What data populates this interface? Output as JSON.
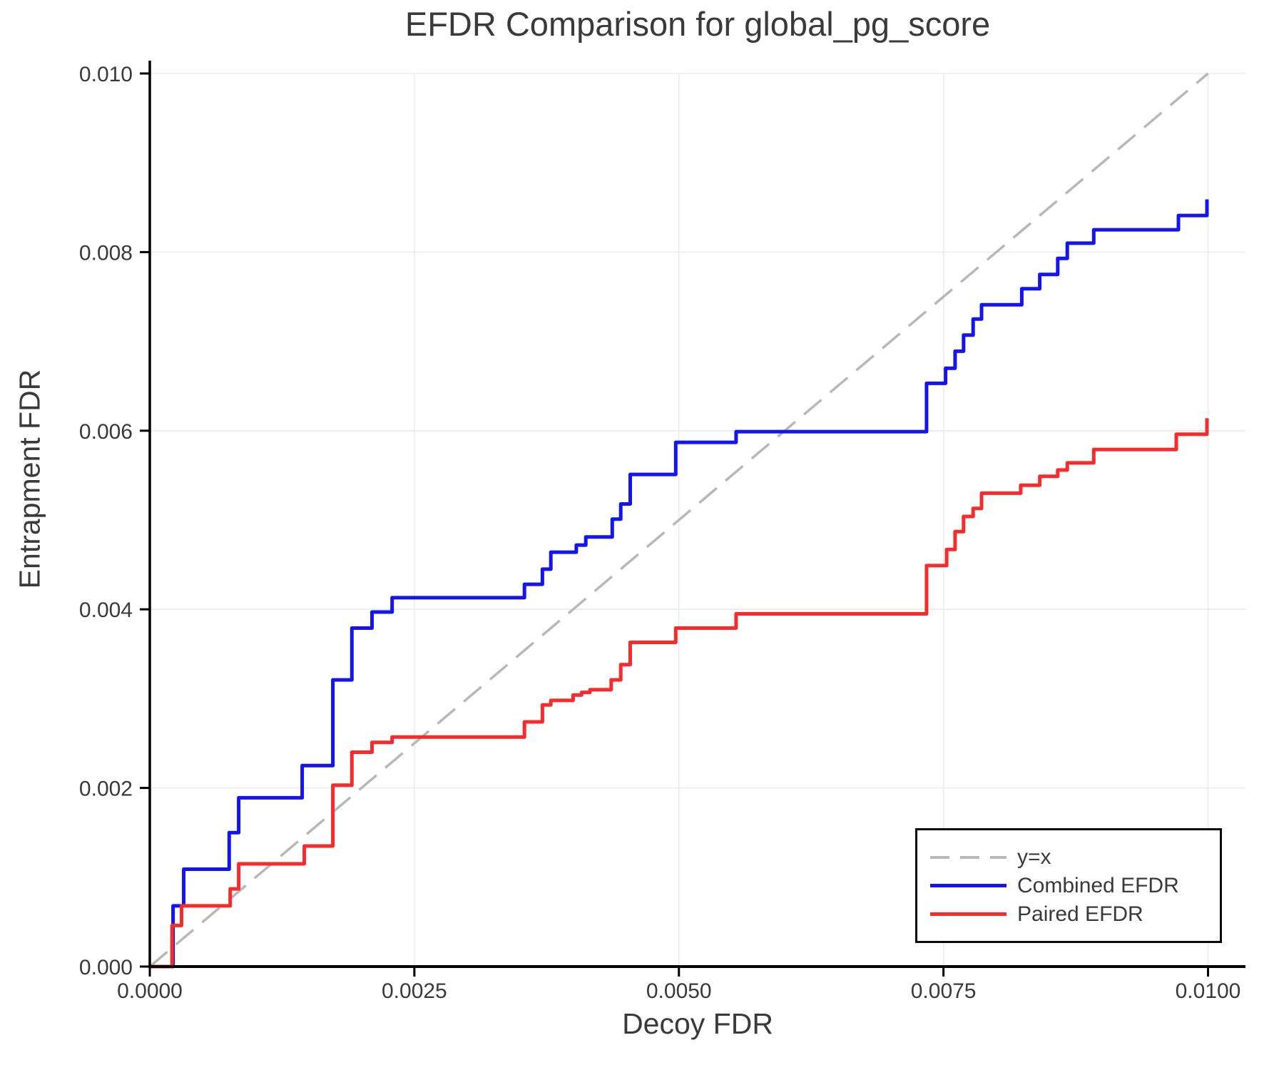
{
  "figure": {
    "title": "EFDR Comparison for global_pg_score",
    "x_axis": {
      "label": "Decoy FDR",
      "ticks": [
        {
          "value": 0.0,
          "label": "0.0000"
        },
        {
          "value": 0.0025,
          "label": "0.0025"
        },
        {
          "value": 0.005,
          "label": "0.0050"
        },
        {
          "value": 0.0075,
          "label": "0.0075"
        },
        {
          "value": 0.01,
          "label": "0.0100"
        }
      ]
    },
    "y_axis": {
      "label": "Entrapment FDR",
      "ticks": [
        {
          "value": 0.0,
          "label": "0.000"
        },
        {
          "value": 0.002,
          "label": "0.002"
        },
        {
          "value": 0.004,
          "label": "0.004"
        },
        {
          "value": 0.006,
          "label": "0.006"
        },
        {
          "value": 0.008,
          "label": "0.008"
        },
        {
          "value": 0.01,
          "label": "0.010"
        }
      ]
    },
    "legend": {
      "items": [
        {
          "label": "y=x",
          "style": "dashed",
          "color": "#b8b8b8"
        },
        {
          "label": "Combined EFDR",
          "style": "solid",
          "color": "#1414ee"
        },
        {
          "label": "Paired EFDR",
          "style": "solid",
          "color": "#f62b2b"
        }
      ]
    }
  },
  "chart_data": {
    "type": "line",
    "title": "EFDR Comparison for global_pg_score",
    "xlabel": "Decoy FDR",
    "ylabel": "Entrapment FDR",
    "xlim": [
      0,
      0.01035
    ],
    "ylim": [
      0,
      0.01
    ],
    "grid": true,
    "grid_color": "#ebebeb",
    "text_color": "#3a3a3a",
    "legend_position": "lower right",
    "series": [
      {
        "name": "y=x",
        "style": "dashed",
        "color": "#b8b8b8",
        "points": [
          [
            0,
            0
          ],
          [
            0.01,
            0.01
          ]
        ]
      },
      {
        "name": "Combined EFDR",
        "style": "step",
        "color": "#1414ee",
        "points": [
          [
            0,
            0
          ],
          [
            0.00022,
            0.00068
          ],
          [
            0.00032,
            0.00109
          ],
          [
            0.00075,
            0.0015
          ],
          [
            0.00084,
            0.00189
          ],
          [
            0.00144,
            0.00225
          ],
          [
            0.00173,
            0.00321
          ],
          [
            0.00191,
            0.00379
          ],
          [
            0.0021,
            0.00397
          ],
          [
            0.00229,
            0.00413
          ],
          [
            0.00354,
            0.00428
          ],
          [
            0.00371,
            0.00445
          ],
          [
            0.00379,
            0.00464
          ],
          [
            0.00403,
            0.00472
          ],
          [
            0.00412,
            0.00481
          ],
          [
            0.00437,
            0.00501
          ],
          [
            0.00445,
            0.00518
          ],
          [
            0.00454,
            0.00551
          ],
          [
            0.00497,
            0.00587
          ],
          [
            0.00554,
            0.00599
          ],
          [
            0.00734,
            0.00653
          ],
          [
            0.00752,
            0.0067
          ],
          [
            0.00761,
            0.00689
          ],
          [
            0.00769,
            0.00707
          ],
          [
            0.00778,
            0.00725
          ],
          [
            0.00786,
            0.00741
          ],
          [
            0.00824,
            0.00759
          ],
          [
            0.00841,
            0.00775
          ],
          [
            0.00858,
            0.00793
          ],
          [
            0.00867,
            0.0081
          ],
          [
            0.00892,
            0.00825
          ],
          [
            0.00972,
            0.00841
          ],
          [
            0.00999,
            0.00859
          ]
        ]
      },
      {
        "name": "Paired EFDR",
        "style": "step",
        "color": "#f62b2b",
        "points": [
          [
            0,
            0
          ],
          [
            0.00021,
            0.00046
          ],
          [
            0.0003,
            0.00068
          ],
          [
            0.00076,
            0.00087
          ],
          [
            0.00084,
            0.00115
          ],
          [
            0.00146,
            0.00135
          ],
          [
            0.00173,
            0.00203
          ],
          [
            0.00191,
            0.0024
          ],
          [
            0.0021,
            0.00251
          ],
          [
            0.00229,
            0.00257
          ],
          [
            0.00354,
            0.00274
          ],
          [
            0.00371,
            0.00293
          ],
          [
            0.00379,
            0.00298
          ],
          [
            0.004,
            0.00304
          ],
          [
            0.00408,
            0.00307
          ],
          [
            0.00416,
            0.0031
          ],
          [
            0.00436,
            0.00321
          ],
          [
            0.00445,
            0.00338
          ],
          [
            0.00454,
            0.00363
          ],
          [
            0.00497,
            0.00379
          ],
          [
            0.00554,
            0.00395
          ],
          [
            0.00734,
            0.00449
          ],
          [
            0.00753,
            0.00467
          ],
          [
            0.00761,
            0.00487
          ],
          [
            0.00769,
            0.00504
          ],
          [
            0.00778,
            0.00513
          ],
          [
            0.00786,
            0.0053
          ],
          [
            0.00823,
            0.00539
          ],
          [
            0.00841,
            0.00549
          ],
          [
            0.00858,
            0.00556
          ],
          [
            0.00867,
            0.00564
          ],
          [
            0.00892,
            0.00579
          ],
          [
            0.0097,
            0.00596
          ],
          [
            0.00999,
            0.00614
          ]
        ]
      }
    ]
  }
}
